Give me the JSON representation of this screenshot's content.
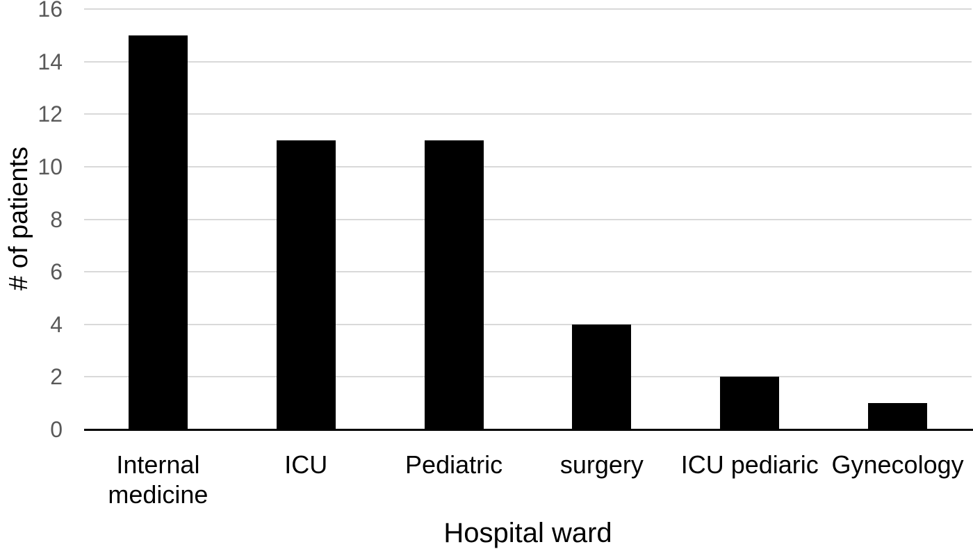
{
  "chart_data": {
    "type": "bar",
    "categories": [
      "Internal medicine",
      "ICU",
      "Pediatric",
      "surgery",
      "ICU pediaric",
      "Gynecology"
    ],
    "values": [
      15,
      11,
      11,
      4,
      2,
      1
    ],
    "title": "",
    "xlabel": "Hospital ward",
    "ylabel": "# of patients",
    "ylim": [
      0,
      16
    ],
    "yticks": [
      0,
      2,
      4,
      6,
      8,
      10,
      12,
      14,
      16
    ],
    "grid": true,
    "legend": false,
    "colors": {
      "bar": "#000000",
      "gridline": "#d9d9d9",
      "tick_label": "#595959",
      "axis_line": "#000000",
      "text": "#000000",
      "background": "#ffffff"
    }
  }
}
